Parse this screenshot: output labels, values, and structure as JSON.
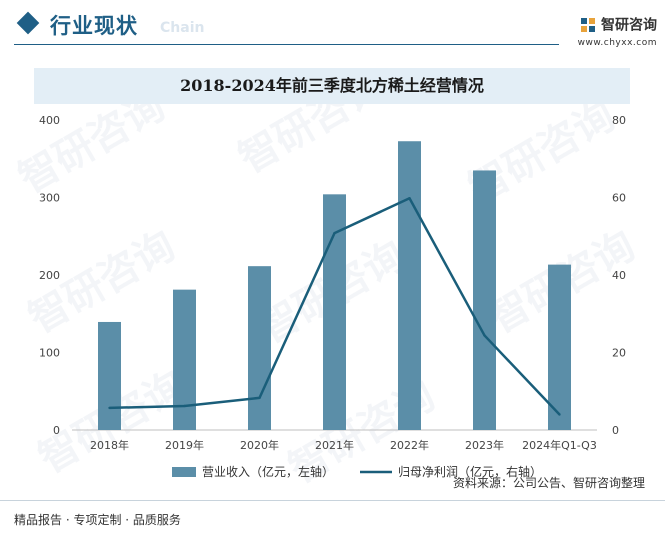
{
  "header": {
    "section_title": "行业现状",
    "section_subtitle": "Chain",
    "brand_name": "智研咨询",
    "brand_url": "www.chyxx.com"
  },
  "watermark": "智研咨询",
  "chart_data": {
    "type": "bar",
    "title": "2018-2024年前三季度北方稀土经营情况",
    "categories": [
      "2018年",
      "2019年",
      "2020年",
      "2021年",
      "2022年",
      "2023年",
      "2024年Q1-Q3"
    ],
    "series": [
      {
        "name": "营业收入（亿元，左轴）",
        "type": "bar",
        "axis": "left",
        "color": "#5b8ea8",
        "values": [
          139.4,
          181.1,
          211.4,
          304.1,
          372.6,
          334.9,
          213.4
        ]
      },
      {
        "name": "归母净利润（亿元，右轴）",
        "type": "line",
        "axis": "right",
        "color": "#1a5e7a",
        "values": [
          5.7,
          6.2,
          8.3,
          50.8,
          59.8,
          24.4,
          4.0
        ]
      }
    ],
    "y_left": {
      "min": 0,
      "max": 400,
      "ticks": [
        0,
        100,
        200,
        300,
        400
      ]
    },
    "y_right": {
      "min": 0,
      "max": 80,
      "ticks": [
        0,
        20,
        40,
        60,
        80
      ]
    },
    "grid": false,
    "legend_position": "bottom"
  },
  "source": "资料来源：公司公告、智研咨询整理",
  "footer": "精品报告 · 专项定制 · 品质服务"
}
